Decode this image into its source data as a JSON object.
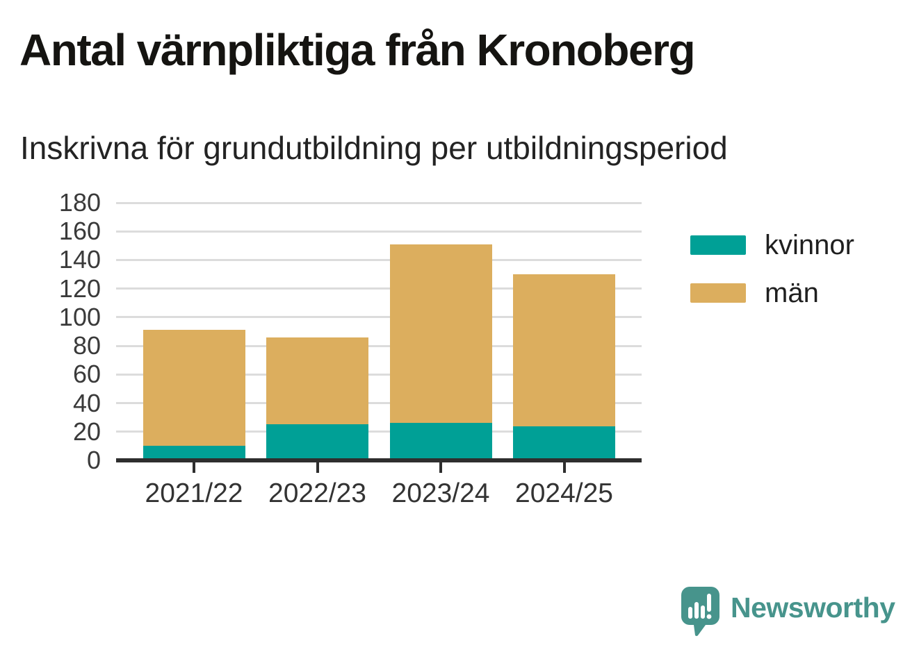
{
  "header": {
    "title": "Antal värnpliktiga från Kronoberg",
    "subtitle": "Inskrivna för grundutbildning per utbildningsperiod"
  },
  "chart_data": {
    "type": "bar",
    "stacked": true,
    "title": "Antal värnpliktiga från Kronoberg",
    "subtitle": "Inskrivna för grundutbildning per utbildningsperiod",
    "categories": [
      "2021/22",
      "2022/23",
      "2023/24",
      "2024/25"
    ],
    "series": [
      {
        "name": "kvinnor",
        "color": "#00a096",
        "values": [
          10,
          25,
          26,
          24
        ]
      },
      {
        "name": "män",
        "color": "#dcae5e",
        "values": [
          81,
          61,
          125,
          106
        ]
      }
    ],
    "totals": [
      91,
      86,
      151,
      130
    ],
    "xlabel": "",
    "ylabel": "",
    "ylim": [
      0,
      180
    ],
    "ytick_step": 20,
    "yticks": [
      "0",
      "20",
      "40",
      "60",
      "80",
      "100",
      "120",
      "140",
      "160",
      "180"
    ],
    "grid": "horizontal",
    "gridline_color": "#dcdcdc",
    "axis_line_color": "#2e2e2e",
    "legend_position": "right"
  },
  "legend": {
    "items": [
      {
        "label": "kvinnor",
        "color": "#00a096"
      },
      {
        "label": "män",
        "color": "#dcae5e"
      }
    ]
  },
  "branding": {
    "logo_text": "Newsworthy",
    "logo_color": "#47948c",
    "logo_icon": "speech-bubble-bar-chart-exclamation"
  }
}
